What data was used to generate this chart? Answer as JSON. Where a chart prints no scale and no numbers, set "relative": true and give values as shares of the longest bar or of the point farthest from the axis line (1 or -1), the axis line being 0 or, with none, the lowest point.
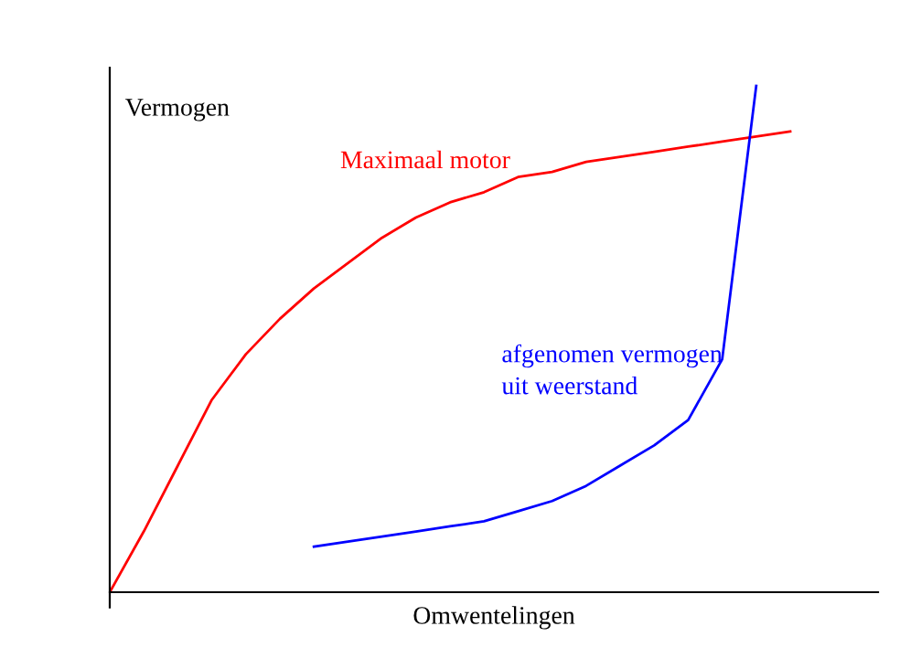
{
  "chart_data": {
    "type": "line",
    "relative": true,
    "ylabel": "Vermogen",
    "xlabel": "Omwentelingen",
    "legend": false,
    "grid": false,
    "marker": "none",
    "line_style": "solid",
    "categories": [
      null,
      null,
      null,
      null,
      null,
      null,
      null,
      null,
      null,
      null,
      null,
      null,
      null,
      null,
      null,
      null,
      null,
      null,
      null,
      null,
      null
    ],
    "series": [
      {
        "name": "Maximaal motor",
        "color": "#ff0000",
        "values": [
          0,
          0.12,
          0.25,
          0.38,
          0.47,
          0.54,
          0.6,
          0.65,
          0.7,
          0.74,
          0.77,
          0.79,
          0.82,
          0.83,
          0.85,
          0.86,
          0.87,
          0.88,
          0.89,
          0.9,
          0.91
        ]
      },
      {
        "name": "afgenomen vermogen\nuit weerstand",
        "color": "#0000ff",
        "values": [
          null,
          null,
          null,
          null,
          null,
          null,
          0.09,
          0.1,
          0.11,
          0.12,
          0.13,
          0.14,
          0.16,
          0.18,
          0.21,
          0.25,
          0.29,
          0.34,
          0.46,
          1.0,
          null
        ]
      }
    ]
  }
}
